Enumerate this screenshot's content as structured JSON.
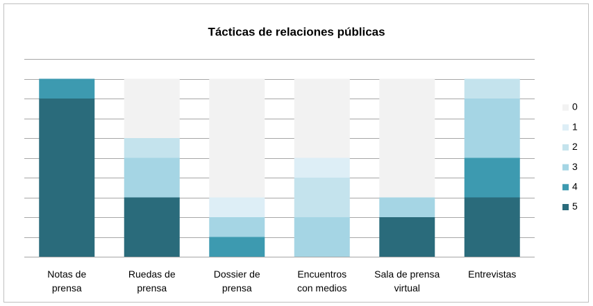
{
  "chart_data": {
    "type": "stacked_bar",
    "title": "Tácticas de relaciones públicas",
    "categories": [
      "Notas de\nprensa",
      "Ruedas de\nprensa",
      "Dossier de\nprensa",
      "Encuentros\ncon medios",
      "Sala de prensa\nvirtual",
      "Entrevistas"
    ],
    "series": [
      {
        "name": "0",
        "color": "#f2f2f2",
        "values": [
          0,
          3,
          6,
          4,
          6,
          0
        ]
      },
      {
        "name": "1",
        "color": "#ddeef6",
        "values": [
          0,
          0,
          1,
          1,
          0,
          0
        ]
      },
      {
        "name": "2",
        "color": "#c4e3ed",
        "values": [
          0,
          1,
          0,
          2,
          0,
          1
        ]
      },
      {
        "name": "3",
        "color": "#a5d5e4",
        "values": [
          0,
          2,
          1,
          2,
          1,
          3
        ]
      },
      {
        "name": "4",
        "color": "#3d9ab0",
        "values": [
          1,
          0,
          1,
          0,
          0,
          2
        ]
      },
      {
        "name": "5",
        "color": "#2a6b7b",
        "values": [
          8,
          3,
          0,
          0,
          2,
          3
        ]
      }
    ],
    "ylim": [
      0,
      10
    ],
    "yticks": [
      0,
      1,
      2,
      3,
      4,
      5,
      6,
      7,
      8,
      9,
      10
    ],
    "grid": true,
    "legend": "right"
  }
}
